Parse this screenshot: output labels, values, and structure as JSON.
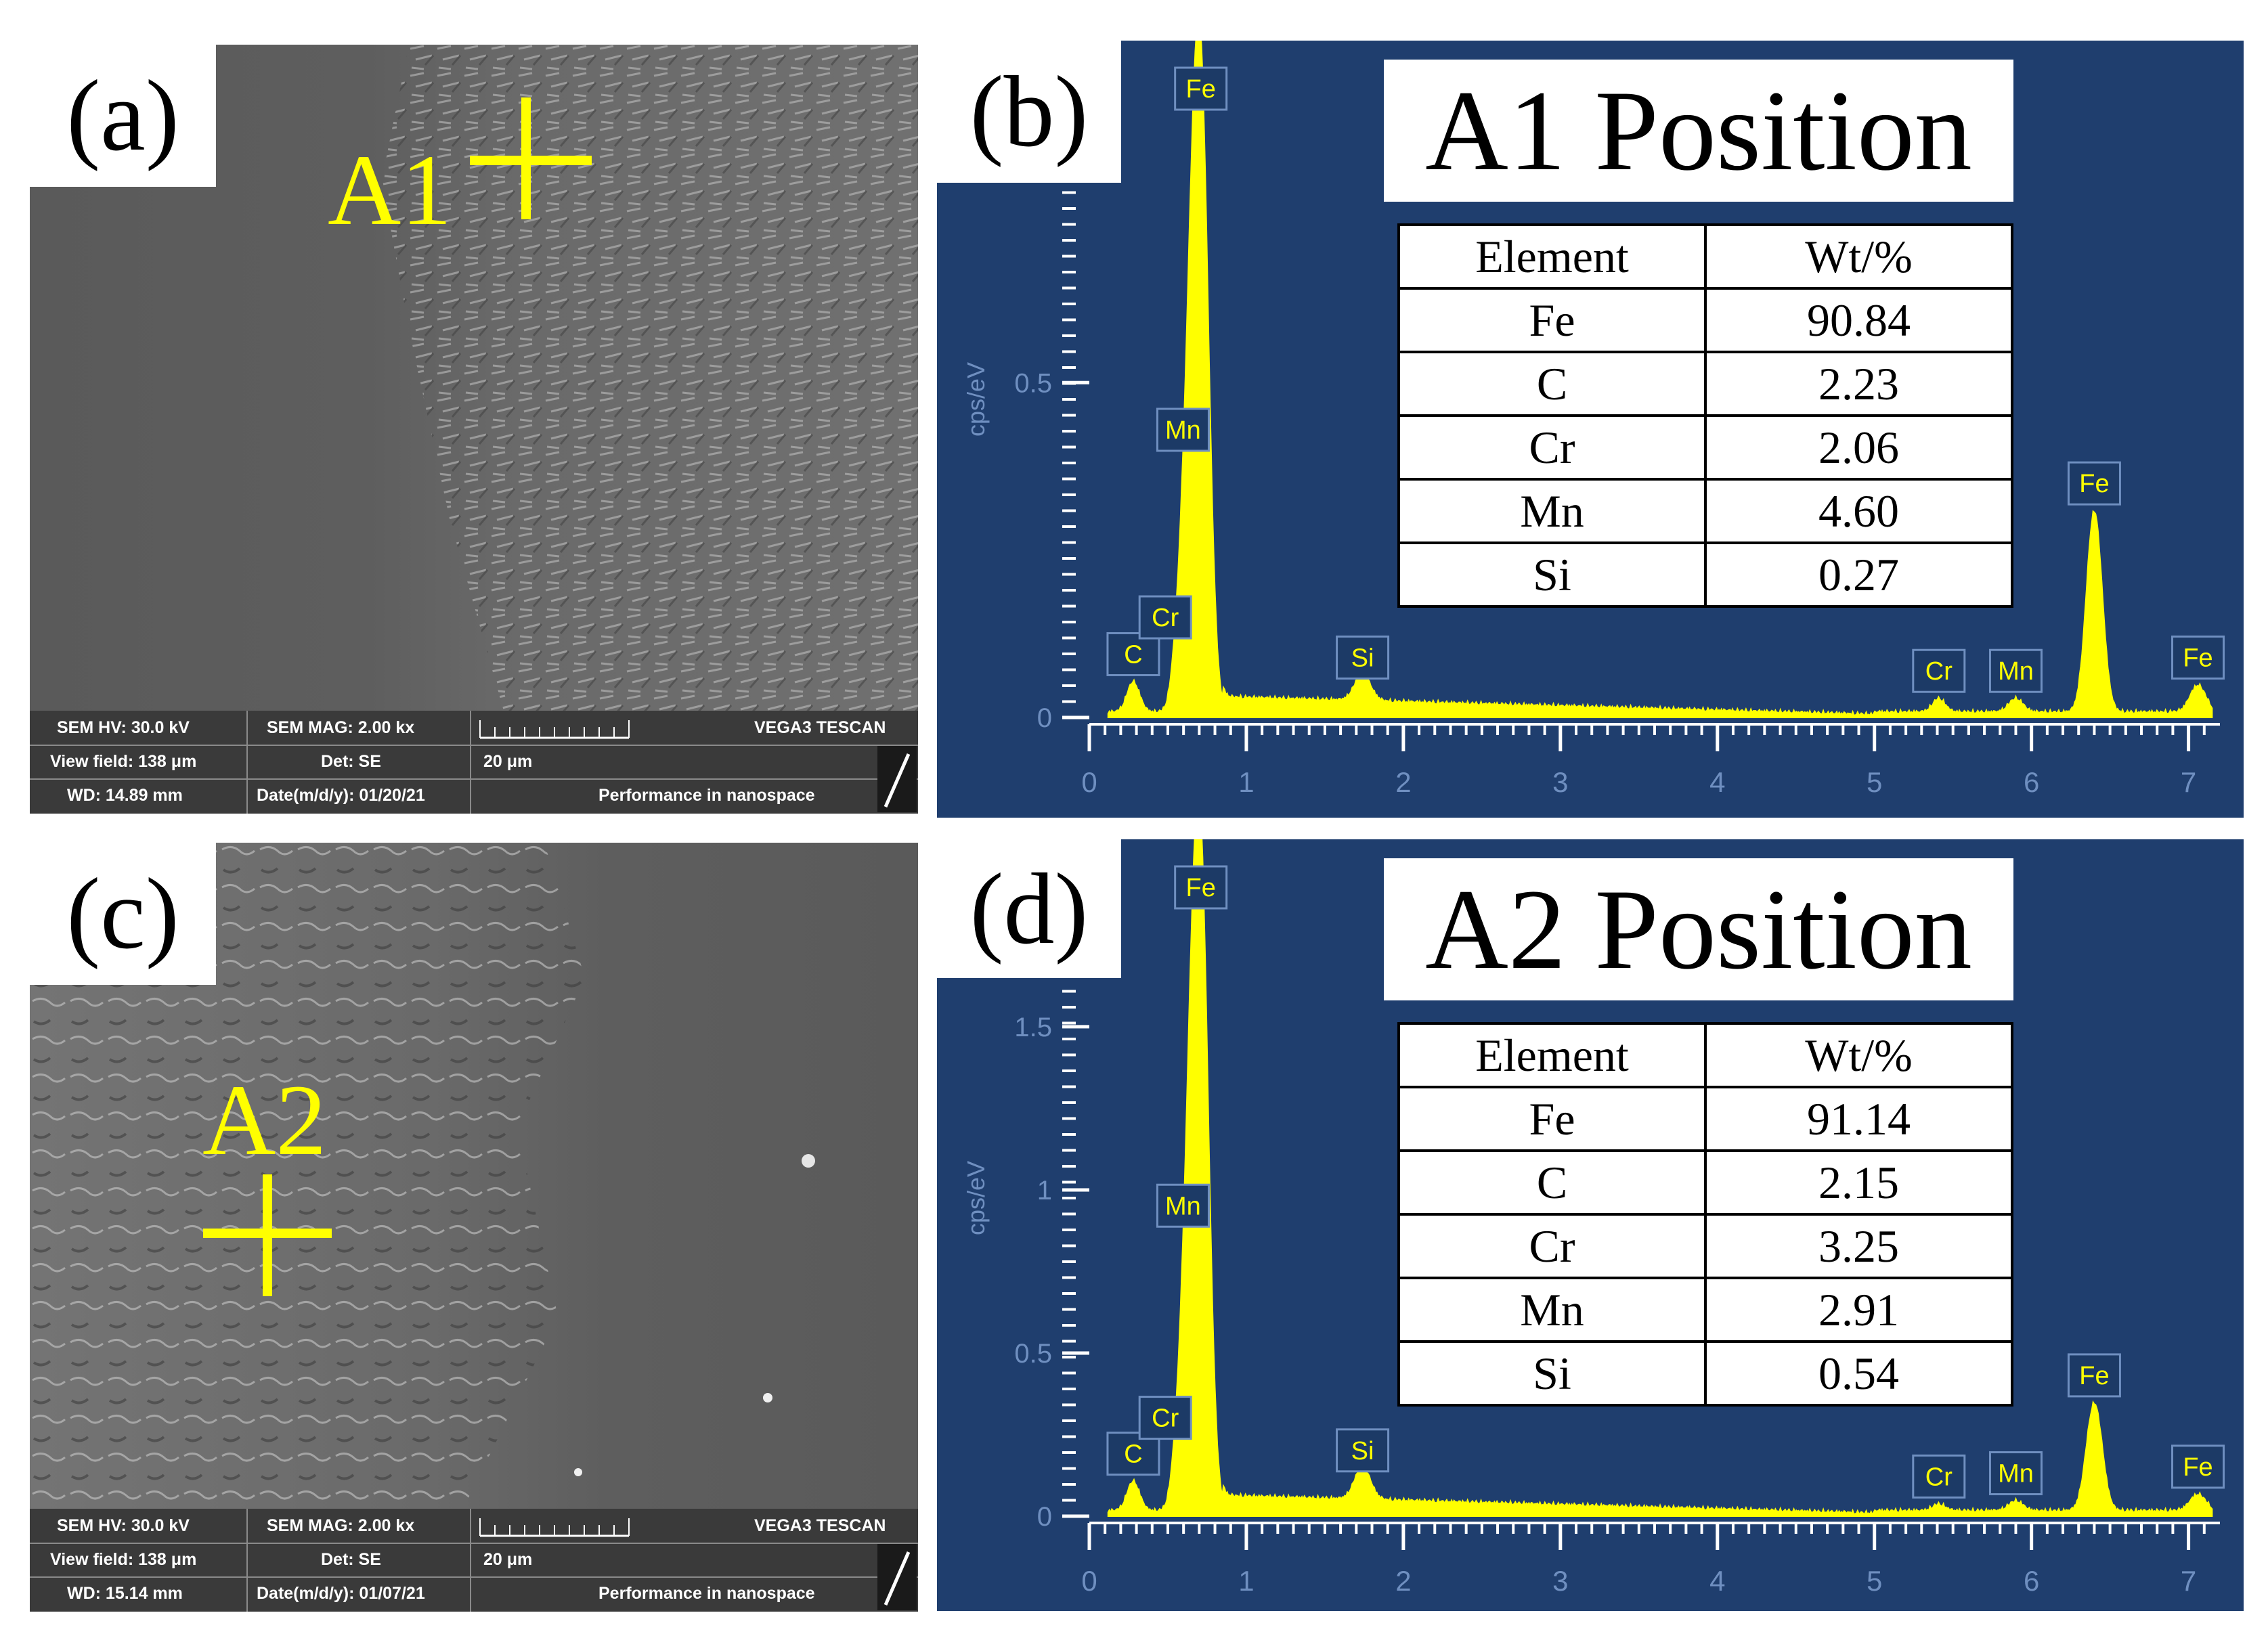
{
  "figure": {
    "panels": [
      {
        "id": "a",
        "label": "(a)",
        "kind": "sem",
        "marker": "A1",
        "info": {
          "hv": "SEM HV: 30.0 kV",
          "mag": "SEM MAG: 2.00 kx",
          "brand": "VEGA3 TESCAN",
          "view_field": "View field: 138 μm",
          "det": "Det: SE",
          "scale": "20 μm",
          "wd": "WD: 14.89 mm",
          "date": "Date(m/d/y): 01/20/21",
          "tagline": "Performance in nanospace"
        }
      },
      {
        "id": "b",
        "label": "(b)",
        "kind": "eds",
        "title": "A1 Position",
        "table": {
          "headers": [
            "Element",
            "Wt/%"
          ],
          "rows": [
            [
              "Fe",
              "90.84"
            ],
            [
              "C",
              "2.23"
            ],
            [
              "Cr",
              "2.06"
            ],
            [
              "Mn",
              "4.60"
            ],
            [
              "Si",
              "0.27"
            ]
          ]
        }
      },
      {
        "id": "c",
        "label": "(c)",
        "kind": "sem",
        "marker": "A2",
        "info": {
          "hv": "SEM HV: 30.0 kV",
          "mag": "SEM MAG: 2.00 kx",
          "brand": "VEGA3 TESCAN",
          "view_field": "View field: 138 μm",
          "det": "Det: SE",
          "scale": "20 μm",
          "wd": "WD: 15.14 mm",
          "date": "Date(m/d/y): 01/07/21",
          "tagline": "Performance in nanospace"
        }
      },
      {
        "id": "d",
        "label": "(d)",
        "kind": "eds",
        "title": "A2 Position",
        "table": {
          "headers": [
            "Element",
            "Wt/%"
          ],
          "rows": [
            [
              "Fe",
              "91.14"
            ],
            [
              "C",
              "2.15"
            ],
            [
              "Cr",
              "3.25"
            ],
            [
              "Mn",
              "2.91"
            ],
            [
              "Si",
              "0.54"
            ]
          ]
        }
      }
    ]
  },
  "chart_data": [
    {
      "type": "line",
      "panel": "b",
      "ylabel": "cps/eV",
      "xlim": [
        0,
        7.2
      ],
      "ylim": [
        0,
        0.95
      ],
      "xticks": [
        "0",
        "1",
        "2",
        "3",
        "4",
        "5",
        "6",
        "7"
      ],
      "yticks": [
        "0",
        "0.5"
      ],
      "line_color": "#ffff00",
      "background_color": "#1f3e6e",
      "peaks": [
        {
          "label": "C",
          "x": 0.28,
          "y": 0.045
        },
        {
          "label": "Cr",
          "x": 0.57,
          "y": 0.1
        },
        {
          "label": "Mn",
          "x": 0.64,
          "y": 0.38
        },
        {
          "label": "Fe",
          "x": 0.71,
          "y": 0.9
        },
        {
          "label": "Si",
          "x": 1.74,
          "y": 0.04
        },
        {
          "label": "Cr",
          "x": 5.41,
          "y": 0.02
        },
        {
          "label": "Mn",
          "x": 5.9,
          "y": 0.02
        },
        {
          "label": "Fe",
          "x": 6.4,
          "y": 0.3
        },
        {
          "label": "Fe",
          "x": 7.06,
          "y": 0.04
        }
      ]
    },
    {
      "type": "line",
      "panel": "d",
      "ylabel": "cps/eV",
      "xlim": [
        0,
        7.2
      ],
      "ylim": [
        0,
        1.95
      ],
      "xticks": [
        "0",
        "1",
        "2",
        "3",
        "4",
        "5",
        "6",
        "7"
      ],
      "yticks": [
        "0",
        "0.5",
        "1",
        "1.5"
      ],
      "line_color": "#ffff00",
      "background_color": "#1f3e6e",
      "peaks": [
        {
          "label": "C",
          "x": 0.28,
          "y": 0.09
        },
        {
          "label": "Cr",
          "x": 0.57,
          "y": 0.2
        },
        {
          "label": "Mn",
          "x": 0.64,
          "y": 0.85
        },
        {
          "label": "Fe",
          "x": 0.71,
          "y": 1.88
        },
        {
          "label": "Si",
          "x": 1.74,
          "y": 0.1
        },
        {
          "label": "Cr",
          "x": 5.41,
          "y": 0.02
        },
        {
          "label": "Mn",
          "x": 5.9,
          "y": 0.03
        },
        {
          "label": "Fe",
          "x": 6.4,
          "y": 0.33
        },
        {
          "label": "Fe",
          "x": 7.06,
          "y": 0.05
        }
      ]
    }
  ]
}
